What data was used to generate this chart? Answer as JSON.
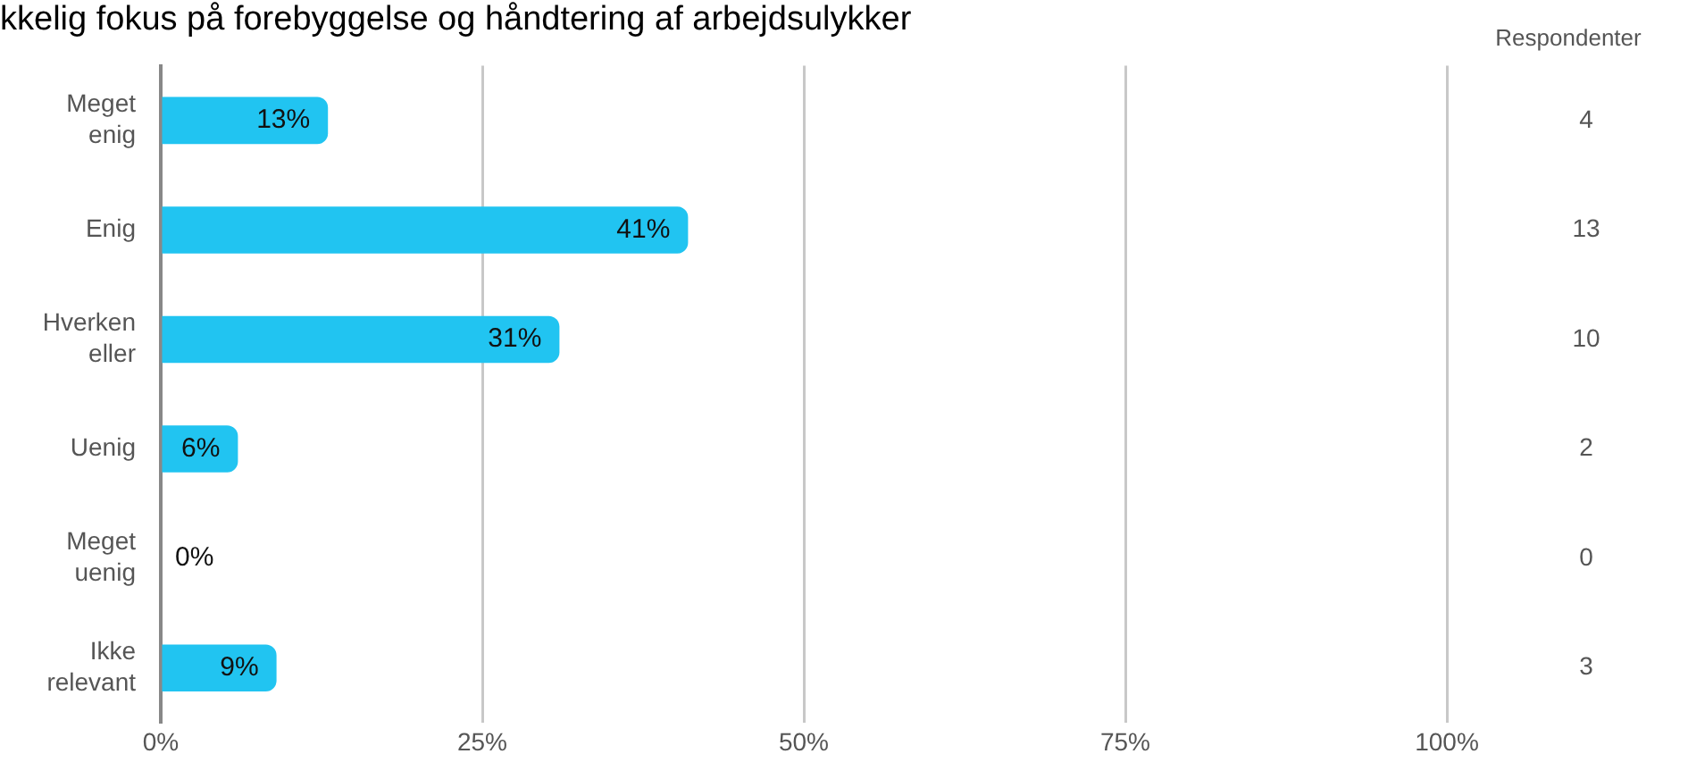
{
  "chart_data": {
    "type": "bar",
    "orientation": "horizontal",
    "title": "kkelig fokus på forebyggelse og håndtering af arbejdsulykker",
    "categories": [
      "Meget enig",
      "Enig",
      "Hverken eller",
      "Uenig",
      "Meget uenig",
      "Ikke relevant"
    ],
    "values": [
      13,
      41,
      31,
      6,
      0,
      9
    ],
    "color": "#21c4f1",
    "value_labels": [
      "13%",
      "41%",
      "31%",
      "6%",
      "0%",
      "9%"
    ],
    "xlim": [
      0,
      100
    ],
    "xticks": [
      {
        "value": 0,
        "label": "0%"
      },
      {
        "value": 25,
        "label": "25%"
      },
      {
        "value": 50,
        "label": "50%"
      },
      {
        "value": 75,
        "label": "75%"
      },
      {
        "value": 100,
        "label": "100%"
      }
    ],
    "grid": "x",
    "legend": false,
    "annotations": [
      "Respondenter",
      "4",
      "13",
      "10",
      "2",
      "0",
      "3"
    ]
  }
}
